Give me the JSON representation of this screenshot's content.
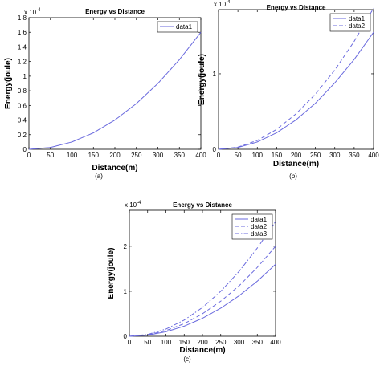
{
  "chart_data": [
    {
      "type": "line",
      "title": "Energy vs Distance",
      "xlabel": "Distance(m)",
      "ylabel": "Energy(joule)",
      "exponent_label": "x 10",
      "exponent_power": "-4",
      "caption": "(a)",
      "xlim": [
        0,
        400
      ],
      "ylim": [
        0,
        1.8
      ],
      "xticks": [
        0,
        50,
        100,
        150,
        200,
        250,
        300,
        350,
        400
      ],
      "yticks": [
        0,
        0.2,
        0.4,
        0.6,
        0.8,
        1,
        1.2,
        1.4,
        1.6,
        1.8
      ],
      "xtick_labels": [
        "0",
        "50",
        "100",
        "150",
        "200",
        "250",
        "300",
        "350",
        "400"
      ],
      "ytick_labels": [
        "0",
        "0.2",
        "0.4",
        "0.6",
        "0.8",
        "1",
        "1.2",
        "1.4",
        "1.6",
        "1.8"
      ],
      "legend_position": "top-right",
      "series": [
        {
          "name": "data1",
          "style": "solid",
          "color": "#6a6ade",
          "x": [
            0,
            50,
            100,
            150,
            200,
            250,
            300,
            350,
            400
          ],
          "values": [
            0.0,
            0.025,
            0.1,
            0.225,
            0.4,
            0.625,
            0.9,
            1.225,
            1.6
          ]
        }
      ]
    },
    {
      "type": "line",
      "title": "Energy vs Distance",
      "xlabel": "Distance(m)",
      "ylabel": "Energy(joule)",
      "exponent_label": "x 10",
      "exponent_power": "-4",
      "caption": "(b)",
      "xlim": [
        0,
        400
      ],
      "ylim": [
        0,
        1.85
      ],
      "xticks": [
        0,
        50,
        100,
        150,
        200,
        250,
        300,
        350,
        400
      ],
      "yticks": [
        0,
        1
      ],
      "xtick_labels": [
        "0",
        "50",
        "100",
        "150",
        "200",
        "250",
        "300",
        "350",
        "400"
      ],
      "ytick_labels": [
        "0",
        "1"
      ],
      "legend_position": "top-right",
      "series": [
        {
          "name": "data1",
          "style": "solid",
          "color": "#6a6ade",
          "x": [
            0,
            50,
            100,
            150,
            200,
            250,
            300,
            350,
            400
          ],
          "values": [
            0.0,
            0.024,
            0.097,
            0.219,
            0.39,
            0.61,
            0.88,
            1.19,
            1.55
          ]
        },
        {
          "name": "data2",
          "style": "dashed",
          "color": "#6a6ade",
          "x": [
            0,
            50,
            100,
            150,
            200,
            250,
            300,
            350,
            400
          ],
          "values": [
            0.0,
            0.029,
            0.117,
            0.264,
            0.47,
            0.73,
            1.05,
            1.43,
            1.87
          ]
        }
      ]
    },
    {
      "type": "line",
      "title": "Energy vs Distance",
      "xlabel": "Distance(m)",
      "ylabel": "Energy(joule)",
      "exponent_label": "x 10",
      "exponent_power": "-4",
      "caption": "(c)",
      "xlim": [
        0,
        400
      ],
      "ylim": [
        0,
        2.8
      ],
      "xticks": [
        0,
        50,
        100,
        150,
        200,
        250,
        300,
        350,
        400
      ],
      "yticks": [
        0,
        1,
        2
      ],
      "xtick_labels": [
        "0",
        "50",
        "100",
        "150",
        "200",
        "250",
        "300",
        "350",
        "400"
      ],
      "ytick_labels": [
        "0",
        "1",
        "2"
      ],
      "legend_position": "top-right",
      "series": [
        {
          "name": "data1",
          "style": "solid",
          "color": "#6a6ade",
          "x": [
            0,
            50,
            100,
            150,
            200,
            250,
            300,
            350,
            400
          ],
          "values": [
            0.0,
            0.025,
            0.1,
            0.225,
            0.4,
            0.625,
            0.9,
            1.225,
            1.6
          ]
        },
        {
          "name": "data2",
          "style": "dashed",
          "color": "#6a6ade",
          "x": [
            0,
            50,
            100,
            150,
            200,
            250,
            300,
            350,
            400
          ],
          "values": [
            0.0,
            0.031,
            0.125,
            0.281,
            0.5,
            0.78,
            1.12,
            1.53,
            2.0
          ]
        },
        {
          "name": "data3",
          "style": "dashdot",
          "color": "#6a6ade",
          "x": [
            0,
            50,
            100,
            150,
            200,
            250,
            300,
            350,
            400
          ],
          "values": [
            0.0,
            0.04,
            0.16,
            0.36,
            0.64,
            1.0,
            1.44,
            1.96,
            2.55
          ]
        }
      ]
    }
  ]
}
